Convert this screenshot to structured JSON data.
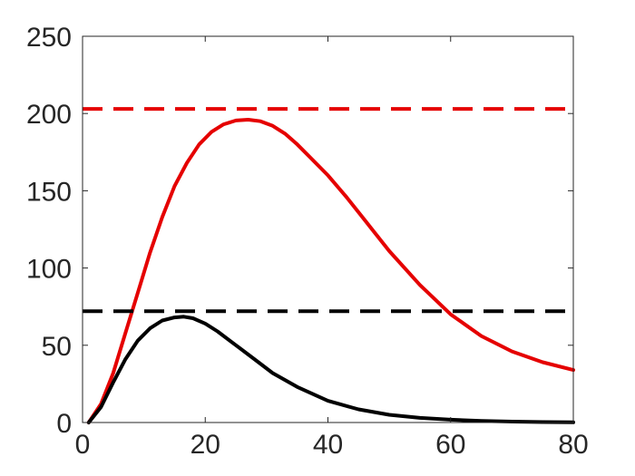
{
  "chart_data": {
    "type": "line",
    "title": "",
    "xlabel": "",
    "ylabel": "",
    "xlim": [
      0,
      80
    ],
    "ylim": [
      0,
      250
    ],
    "xticks": [
      0,
      20,
      40,
      60,
      80
    ],
    "yticks": [
      0,
      50,
      100,
      150,
      200,
      250
    ],
    "xtick_labels": [
      "0",
      "20",
      "40",
      "60",
      "80"
    ],
    "ytick_labels": [
      "0",
      "50",
      "100",
      "150",
      "200",
      "250"
    ],
    "grid": false,
    "series": [
      {
        "color": "#e50000",
        "style": "solid",
        "x": [
          1,
          3,
          5,
          7,
          9,
          11,
          13,
          15,
          17,
          19,
          21,
          23,
          25,
          27,
          29,
          31,
          33,
          35,
          37,
          40,
          43,
          46,
          50,
          55,
          60,
          65,
          70,
          75,
          80
        ],
        "y": [
          0,
          12,
          32,
          58,
          84,
          110,
          133,
          153,
          168,
          180,
          188,
          193,
          195.5,
          196,
          195,
          192,
          187,
          180,
          172,
          160,
          146,
          131,
          111,
          89,
          70,
          56,
          46,
          39,
          34
        ]
      },
      {
        "color": "#e50000",
        "style": "dashed",
        "x": [
          0,
          80
        ],
        "y": [
          203,
          203
        ]
      },
      {
        "color": "#000000",
        "style": "solid",
        "x": [
          1,
          3,
          5,
          7,
          9,
          11,
          13,
          15,
          16.5,
          18,
          20,
          22,
          25,
          28,
          31,
          35,
          40,
          45,
          50,
          55,
          60,
          65,
          70,
          75,
          80
        ],
        "y": [
          0,
          10,
          26,
          41,
          53,
          61,
          66,
          68,
          68.5,
          67.5,
          64,
          59,
          50,
          41,
          32,
          23,
          14,
          8.5,
          5,
          3,
          1.8,
          1,
          0.6,
          0.3,
          0.1
        ]
      },
      {
        "color": "#000000",
        "style": "dashed",
        "x": [
          0,
          80
        ],
        "y": [
          72,
          72
        ]
      }
    ]
  }
}
